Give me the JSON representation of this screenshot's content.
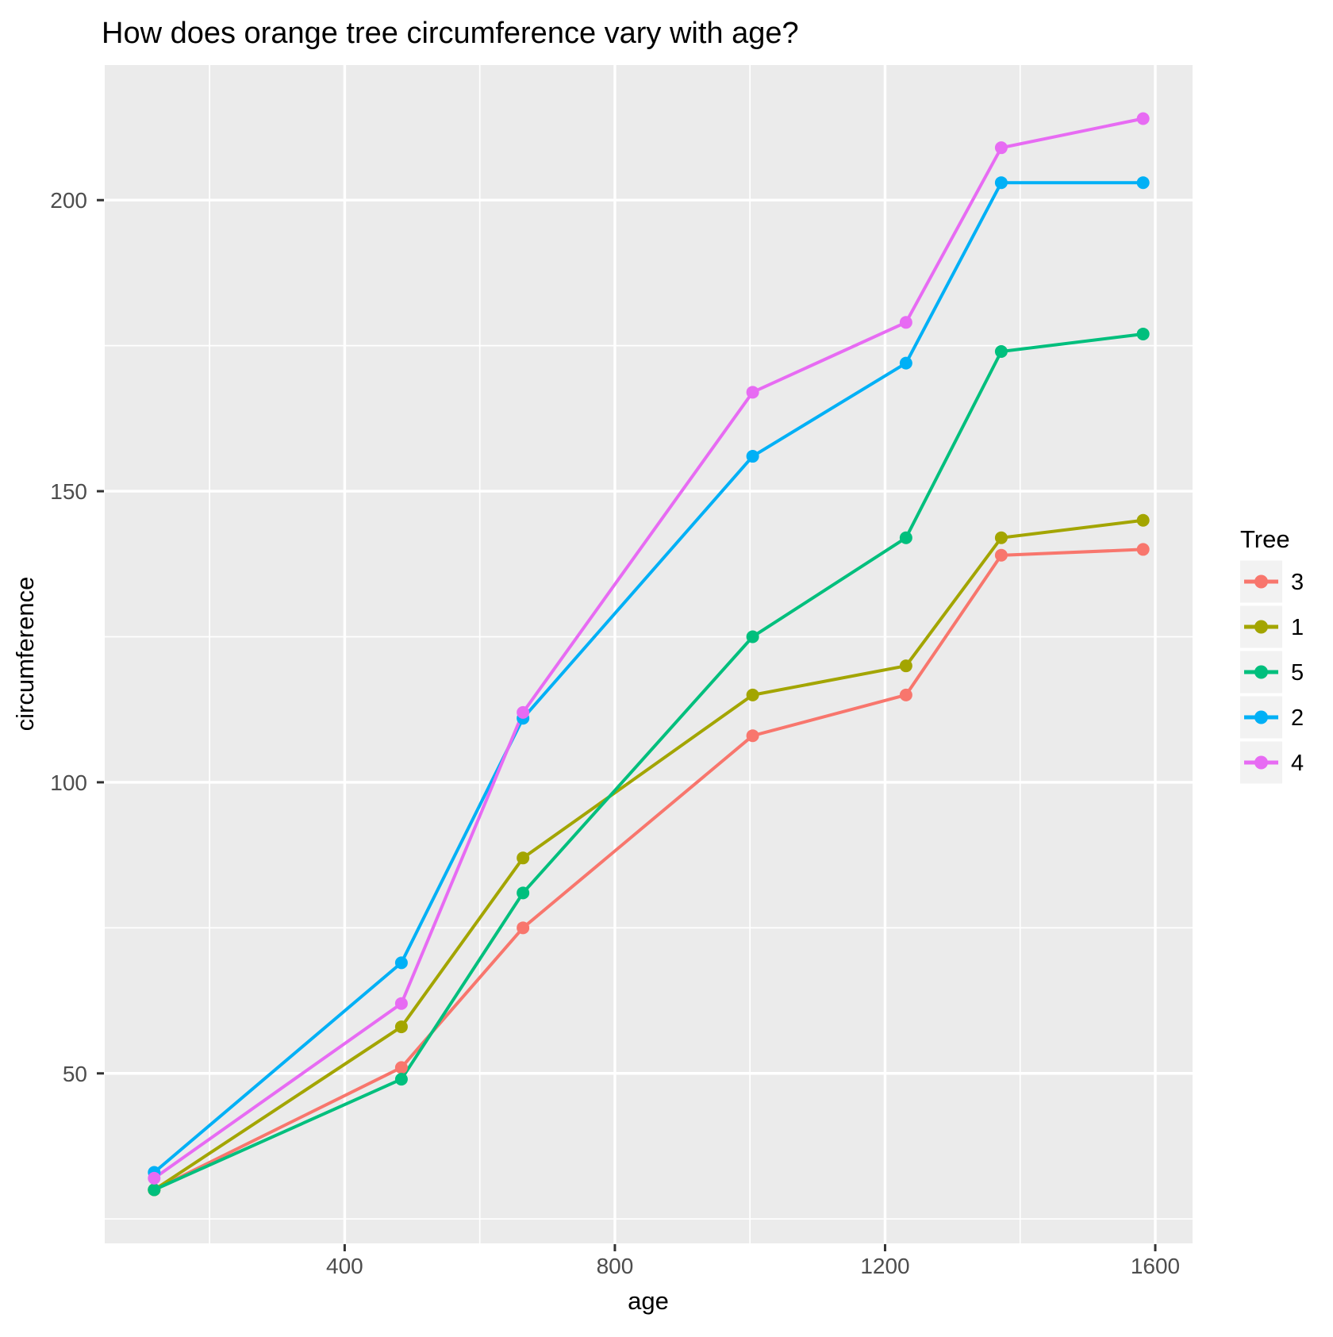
{
  "chart_data": {
    "type": "line",
    "title": "How does orange tree circumference vary with age?",
    "xlabel": "age",
    "ylabel": "circumference",
    "legend_title": "Tree",
    "legend_position": "right",
    "x": [
      118,
      484,
      664,
      1004,
      1231,
      1372,
      1582
    ],
    "series": [
      {
        "name": "3",
        "color": "#F8766D",
        "values": [
          30,
          51,
          75,
          108,
          115,
          139,
          140
        ]
      },
      {
        "name": "1",
        "color": "#A3A500",
        "values": [
          30,
          58,
          87,
          115,
          120,
          142,
          145
        ]
      },
      {
        "name": "5",
        "color": "#00BF7D",
        "values": [
          30,
          49,
          81,
          125,
          142,
          174,
          177
        ]
      },
      {
        "name": "2",
        "color": "#00B0F6",
        "values": [
          33,
          69,
          111,
          156,
          172,
          203,
          203
        ]
      },
      {
        "name": "4",
        "color": "#E76BF3",
        "values": [
          32,
          62,
          112,
          167,
          179,
          209,
          214
        ]
      }
    ],
    "x_ticks": [
      400,
      800,
      1200,
      1600
    ],
    "y_ticks": [
      50,
      100,
      150,
      200
    ],
    "x_minor_ticks": [
      200,
      600,
      1000,
      1400
    ],
    "y_minor_ticks": [
      25,
      75,
      125,
      175
    ],
    "xlim": [
      44.8,
      1655.2
    ],
    "ylim": [
      20.8,
      223.2
    ],
    "grid": true,
    "styles": {
      "panel_background": "#EBEBEB",
      "plot_background": "#FFFFFF",
      "gridline_color": "#FFFFFF",
      "tick_text_color": "#4D4D4D",
      "axis_tick_color": "#333333",
      "legend_key_background": "#F2F2F2",
      "title_text_color": "#000000"
    }
  }
}
